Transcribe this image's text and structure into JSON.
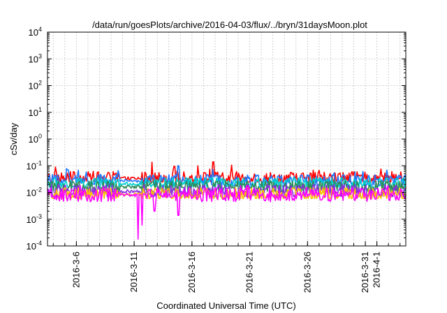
{
  "chart_data": {
    "type": "line",
    "title": "/data/run/goesPlots/archive/2016-04-03/flux/../bryn/31daysMoon.plot",
    "xlabel": "Coordinated Universal Time (UTC)",
    "ylabel": "cSv/day",
    "y_scale": "log",
    "ylim": [
      0.0001,
      10000
    ],
    "xlim": [
      "2016-03-03T12:00",
      "2016-04-03T12:00"
    ],
    "grid": true,
    "x_ticks": [
      {
        "date": "2016-03-06",
        "label": "2016-3-6"
      },
      {
        "date": "2016-03-11",
        "label": "2016-3-11"
      },
      {
        "date": "2016-03-16",
        "label": "2016-3-16"
      },
      {
        "date": "2016-03-21",
        "label": "2016-3-21"
      },
      {
        "date": "2016-03-26",
        "label": "2016-3-26"
      },
      {
        "date": "2016-03-31",
        "label": "2016-3-31"
      },
      {
        "date": "2016-04-01",
        "label": "2016-4-1"
      }
    ],
    "y_ticks": [
      {
        "value": 0.0001,
        "base": "10",
        "exp": "-4"
      },
      {
        "value": 0.001,
        "base": "10",
        "exp": "-3"
      },
      {
        "value": 0.01,
        "base": "10",
        "exp": "-2"
      },
      {
        "value": 0.1,
        "base": "10",
        "exp": "-1"
      },
      {
        "value": 1,
        "base": "10",
        "exp": "0"
      },
      {
        "value": 10,
        "base": "10",
        "exp": "1"
      },
      {
        "value": 100,
        "base": "10",
        "exp": "2"
      },
      {
        "value": 1000,
        "base": "10",
        "exp": "3"
      },
      {
        "value": 10000,
        "base": "10",
        "exp": "4"
      }
    ],
    "series": [
      {
        "color": "#ff0000",
        "level": 0.034,
        "max": 0.14,
        "min": 0.025,
        "spikes": [
          {
            "date": "2016-03-17T20:00",
            "value": 0.14
          },
          {
            "date": "2016-03-16T12:00",
            "value": 0.1
          },
          {
            "date": "2016-03-14T12:00",
            "value": 0.095
          }
        ]
      },
      {
        "color": "#1e78ff",
        "level": 0.027,
        "max": 0.09,
        "min": 0.018,
        "spikes": [
          {
            "date": "2016-03-14T20:00",
            "value": 0.1
          },
          {
            "date": "2016-03-05T06:00",
            "value": 0.07
          }
        ]
      },
      {
        "color": "#00d0d0",
        "level": 0.021,
        "max": 0.035,
        "min": 0.016,
        "spikes": []
      },
      {
        "color": "#2e8b57",
        "level": 0.016,
        "max": 0.026,
        "min": 0.011,
        "spikes": []
      },
      {
        "color": "#8a2be2",
        "level": 0.011,
        "max": 0.02,
        "min": 0.007,
        "spikes": []
      },
      {
        "color": "#ffc000",
        "level": 0.0085,
        "max": 0.015,
        "min": 0.006,
        "spikes": []
      },
      {
        "color": "#ff00ff",
        "level": 0.008,
        "max": 0.018,
        "min": 0.0045,
        "spikes": [
          {
            "date": "2016-03-11T08:00",
            "value": 0.00018
          },
          {
            "date": "2016-03-11T16:00",
            "value": 0.0006
          },
          {
            "date": "2016-03-12T18:00",
            "value": 0.002
          },
          {
            "date": "2016-03-14T20:00",
            "value": 0.0014
          }
        ]
      }
    ]
  }
}
